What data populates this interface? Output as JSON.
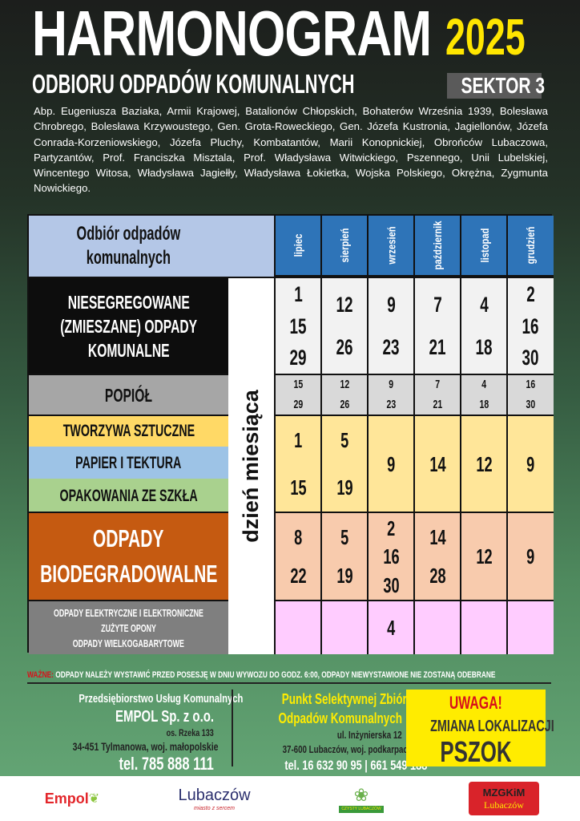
{
  "header": {
    "title": "HARMONOGRAM",
    "subtitle": "ODBIORU ODPADÓW KOMUNALNYCH",
    "year": "2025",
    "sector": "SEKTOR 3"
  },
  "streets": "Abp. Eugeniusza Baziaka, Armii Krajowej, Batalionów Chłopskich, Bohaterów Września 1939, Bolesława Chrobrego, Bolesława Krzywoustego, Gen. Grota-Roweckiego, Gen. Józefa Kustronia, Jagiellonów, Józefa Conrada-Korzeniowskiego, Józefa Pluchy, Kombatantów, Marii Konopnickiej, Obrońców Lubaczowa, Partyzantów, Prof. Franciszka Misztala, Prof. Władysława Witwickiego, Pszennego, Unii Lubelskiej, Wincentego Witosa, Władysława Jagiełły, Władysława Łokietka, Wojska Polskiego, Okrężna, Zygmunta Nowickiego.",
  "table": {
    "corner_label_1": "Odbiór odpadów",
    "corner_label_2": "komunalnych",
    "day_label": "dzień miesiąca",
    "months": [
      "lipiec",
      "sierpień",
      "wrzesień",
      "październik",
      "listopad",
      "grudzień"
    ],
    "rows": [
      {
        "label": [
          "NIESEGREGOWANE",
          "(ZMIESZANE) ODPADY",
          "KOMUNALNE"
        ],
        "color": "#0d0d0d",
        "text_color": "#ffffff",
        "cell_color": "#f2f2f2",
        "days": [
          [
            "1",
            "15",
            "29"
          ],
          [
            "12",
            "26"
          ],
          [
            "9",
            "23"
          ],
          [
            "7",
            "21"
          ],
          [
            "4",
            "18"
          ],
          [
            "2",
            "16",
            "30"
          ]
        ]
      },
      {
        "label": [
          "POPIÓŁ"
        ],
        "color": "#a6a6a6",
        "text_color": "#111111",
        "cell_color": "#d9d9d9",
        "days": [
          [
            "15",
            "29"
          ],
          [
            "12",
            "26"
          ],
          [
            "9",
            "23"
          ],
          [
            "7",
            "21"
          ],
          [
            "4",
            "18"
          ],
          [
            "16",
            "30"
          ]
        ]
      },
      {
        "labels": [
          {
            "text": "TWORZYWA SZTUCZNE",
            "color": "#ffd966"
          },
          {
            "text": "PAPIER I TEKTURA",
            "color": "#9dc3e6"
          },
          {
            "text": "OPAKOWANIA ZE SZKŁA",
            "color": "#a9d18e"
          }
        ],
        "cell_color": "#ffe699",
        "days": [
          [
            "1",
            "15"
          ],
          [
            "5",
            "19"
          ],
          [
            "9"
          ],
          [
            "14"
          ],
          [
            "12"
          ],
          [
            "9"
          ]
        ]
      },
      {
        "label": [
          "ODPADY",
          "BIODEGRADOWALNE"
        ],
        "color": "#c55a11",
        "text_color": "#ffffff",
        "cell_color": "#f8cbad",
        "days": [
          [
            "8",
            "22"
          ],
          [
            "5",
            "19"
          ],
          [
            "2",
            "16",
            "30"
          ],
          [
            "14",
            "28"
          ],
          [
            "12"
          ],
          [
            "9"
          ]
        ]
      },
      {
        "label": [
          "ODPADY ELEKTRYCZNE I ELEKTRONICZNE",
          "ZUŻYTE OPONY",
          "ODPADY WIELKOGABARYTOWE"
        ],
        "color": "#7f7f7f",
        "text_color": "#ffffff",
        "cell_color": "#ffccff",
        "days": [
          [],
          [],
          [
            "4"
          ],
          [],
          [],
          []
        ]
      }
    ]
  },
  "notice": {
    "label": "WAŻNE:",
    "text": "ODPADY NALEŻY WYSTAWIĆ PRZED POSESJĘ W DNIU WYWOZU DO GODZ. 6:00, ODPADY NIEWYSTAWIONE NIE ZOSTANĄ ODEBRANE"
  },
  "company": {
    "line1": "Przedsiębiorstwo Usług Komunalnych",
    "name": "EMPOL Sp. z o.o.",
    "street": "os. Rzeka 133",
    "city": "34-451 Tylmanowa, woj. małopolskie",
    "phone": "tel. 785 888 111"
  },
  "pszok": {
    "line1": "Punkt Selektywnej Zbiórki",
    "line2": "Odpadów Komunalnych",
    "street": "ul. Inżynierska 12",
    "city": "37-600 Lubaczów, woj. podkarpackie",
    "phone": "tel. 16 632 90 95 | 661 549 188"
  },
  "alert": {
    "line1": "UWAGA!",
    "line2": "ZMIANA LOKALIZACJI",
    "line3": "PSZOK"
  },
  "logos": {
    "empol": "Empol",
    "lubaczow": "Lubaczów",
    "lubaczow_tag": "miasto z sercem",
    "czysty": "CZYSTY LUBACZÓW",
    "mzgkim_1": "MZGKiM",
    "mzgkim_2": "Lubaczów"
  }
}
